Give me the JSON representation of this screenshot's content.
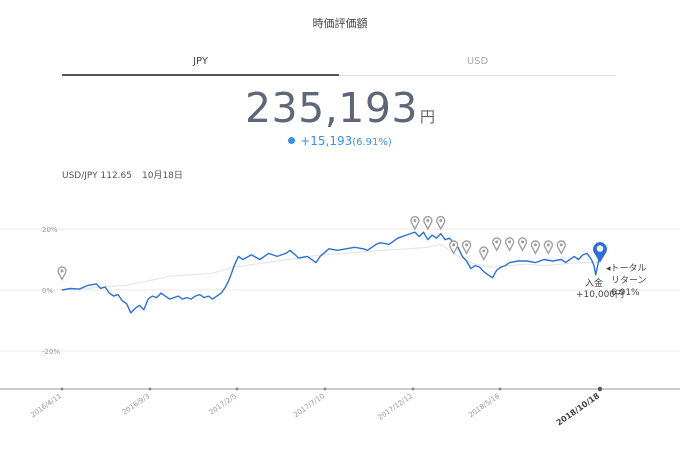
{
  "header": {
    "title": "時価評価額"
  },
  "tabs": [
    {
      "label": "JPY",
      "active": true
    },
    {
      "label": "USD",
      "active": false
    }
  ],
  "valuation": {
    "amount": "235,193",
    "unit": "円",
    "change": "+15,193",
    "change_pct": "(6.91%)",
    "color": "#3e8ee8"
  },
  "fx": {
    "pair_rate": "USD/JPY 112.65",
    "date": "10月18日"
  },
  "annotation": {
    "total_return_line1": "◂トータル",
    "total_return_line2": "リターン",
    "total_return_value": "6.91%",
    "deposit_label": "入金",
    "deposit_amount": "+10,000円"
  },
  "chart_data": {
    "type": "line",
    "y_ticks": [
      "20%",
      "0%",
      "-20%"
    ],
    "ylim": [
      -33,
      25
    ],
    "x_ticks": [
      "2016/4/11",
      "2016/9/3",
      "2017/2/5",
      "2017/7/10",
      "2017/12/12",
      "2018/5/16",
      "2018/10/18"
    ],
    "x_tick_bold": "2018/10/18",
    "colors": {
      "portfolio": "#2c70d6",
      "benchmark": "#e6e6e6",
      "marker": "#a0a0a0"
    },
    "series": [
      {
        "id": "portfolio",
        "points": [
          [
            0,
            0
          ],
          [
            2,
            0.5
          ],
          [
            4,
            0.3
          ],
          [
            6,
            1.5
          ],
          [
            8,
            2
          ],
          [
            9,
            0.5
          ],
          [
            10,
            1
          ],
          [
            11,
            -1
          ],
          [
            12,
            -2
          ],
          [
            13,
            -1.5
          ],
          [
            14,
            -3.5
          ],
          [
            15,
            -4.5
          ],
          [
            16,
            -7.5
          ],
          [
            17,
            -6
          ],
          [
            18,
            -5
          ],
          [
            19,
            -6.5
          ],
          [
            20,
            -3
          ],
          [
            21,
            -2
          ],
          [
            22,
            -2.5
          ],
          [
            23,
            -1
          ],
          [
            24,
            -2
          ],
          [
            25,
            -3
          ],
          [
            26,
            -2.5
          ],
          [
            27,
            -2
          ],
          [
            28,
            -3
          ],
          [
            29,
            -2.5
          ],
          [
            30,
            -3
          ],
          [
            31,
            -2
          ],
          [
            32,
            -1.5
          ],
          [
            33,
            -2.5
          ],
          [
            34,
            -2
          ],
          [
            35,
            -3
          ],
          [
            36,
            -2
          ],
          [
            37,
            -1
          ],
          [
            38,
            1
          ],
          [
            39,
            4
          ],
          [
            40,
            8
          ],
          [
            41,
            11
          ],
          [
            42,
            10
          ],
          [
            44,
            11.5
          ],
          [
            46,
            10
          ],
          [
            48,
            12
          ],
          [
            50,
            11
          ],
          [
            52,
            12
          ],
          [
            53,
            13
          ],
          [
            55,
            10.5
          ],
          [
            57,
            11
          ],
          [
            59,
            9
          ],
          [
            60,
            11
          ],
          [
            62,
            13.5
          ],
          [
            64,
            13
          ],
          [
            66,
            13.5
          ],
          [
            68,
            14
          ],
          [
            70,
            13.5
          ],
          [
            71,
            13
          ],
          [
            72,
            14
          ],
          [
            73,
            15
          ],
          [
            74,
            15.5
          ],
          [
            76,
            15
          ],
          [
            78,
            17
          ],
          [
            80,
            18
          ],
          [
            82,
            19
          ],
          [
            83,
            17.5
          ],
          [
            84,
            19
          ],
          [
            85,
            16.5
          ],
          [
            86,
            18
          ],
          [
            87,
            17
          ],
          [
            88,
            18.5
          ],
          [
            89,
            16.5
          ],
          [
            90,
            17
          ],
          [
            91,
            15.5
          ],
          [
            92,
            14
          ],
          [
            93,
            11
          ],
          [
            94,
            9.5
          ],
          [
            95,
            7
          ],
          [
            96,
            8
          ],
          [
            97,
            7.5
          ],
          [
            98,
            6
          ],
          [
            99,
            5
          ],
          [
            100,
            4
          ],
          [
            101,
            6.5
          ],
          [
            102,
            7.5
          ],
          [
            103,
            8
          ],
          [
            104,
            9
          ],
          [
            106,
            9.5
          ],
          [
            108,
            9.5
          ],
          [
            110,
            9
          ],
          [
            112,
            10
          ],
          [
            114,
            9.5
          ],
          [
            116,
            10
          ],
          [
            117,
            9
          ],
          [
            118,
            10
          ],
          [
            119,
            11
          ],
          [
            120,
            10
          ],
          [
            121,
            11.5
          ],
          [
            122,
            12
          ],
          [
            123,
            10
          ],
          [
            123.6,
            8
          ],
          [
            124,
            5
          ],
          [
            124.6,
            9
          ],
          [
            125,
            12.6
          ]
        ]
      },
      {
        "id": "benchmark",
        "points": [
          [
            0,
            0
          ],
          [
            5,
            0.5
          ],
          [
            10,
            1
          ],
          [
            15,
            1.5
          ],
          [
            20,
            3
          ],
          [
            25,
            4.5
          ],
          [
            30,
            5
          ],
          [
            35,
            5.5
          ],
          [
            40,
            7.5
          ],
          [
            45,
            8.5
          ],
          [
            50,
            9.5
          ],
          [
            55,
            10.5
          ],
          [
            60,
            11.5
          ],
          [
            65,
            12
          ],
          [
            70,
            12.5
          ],
          [
            75,
            13
          ],
          [
            80,
            13.5
          ],
          [
            85,
            14
          ],
          [
            88,
            15
          ],
          [
            91,
            12
          ],
          [
            94,
            9.5
          ],
          [
            97,
            8
          ],
          [
            100,
            7.5
          ],
          [
            104,
            8
          ],
          [
            108,
            8.5
          ],
          [
            112,
            8
          ],
          [
            116,
            8.5
          ],
          [
            120,
            9
          ],
          [
            125,
            9
          ]
        ]
      }
    ],
    "markers": [
      [
        0,
        3.5
      ],
      [
        82,
        20
      ],
      [
        85,
        20
      ],
      [
        88,
        20
      ],
      [
        91,
        12
      ],
      [
        94,
        12
      ],
      [
        98,
        10
      ],
      [
        101,
        13
      ],
      [
        104,
        13
      ],
      [
        107,
        13
      ],
      [
        110,
        12
      ],
      [
        113,
        12
      ],
      [
        116,
        12
      ],
      [
        125,
        11.5
      ]
    ],
    "current_point": [
      125,
      12.6
    ]
  }
}
